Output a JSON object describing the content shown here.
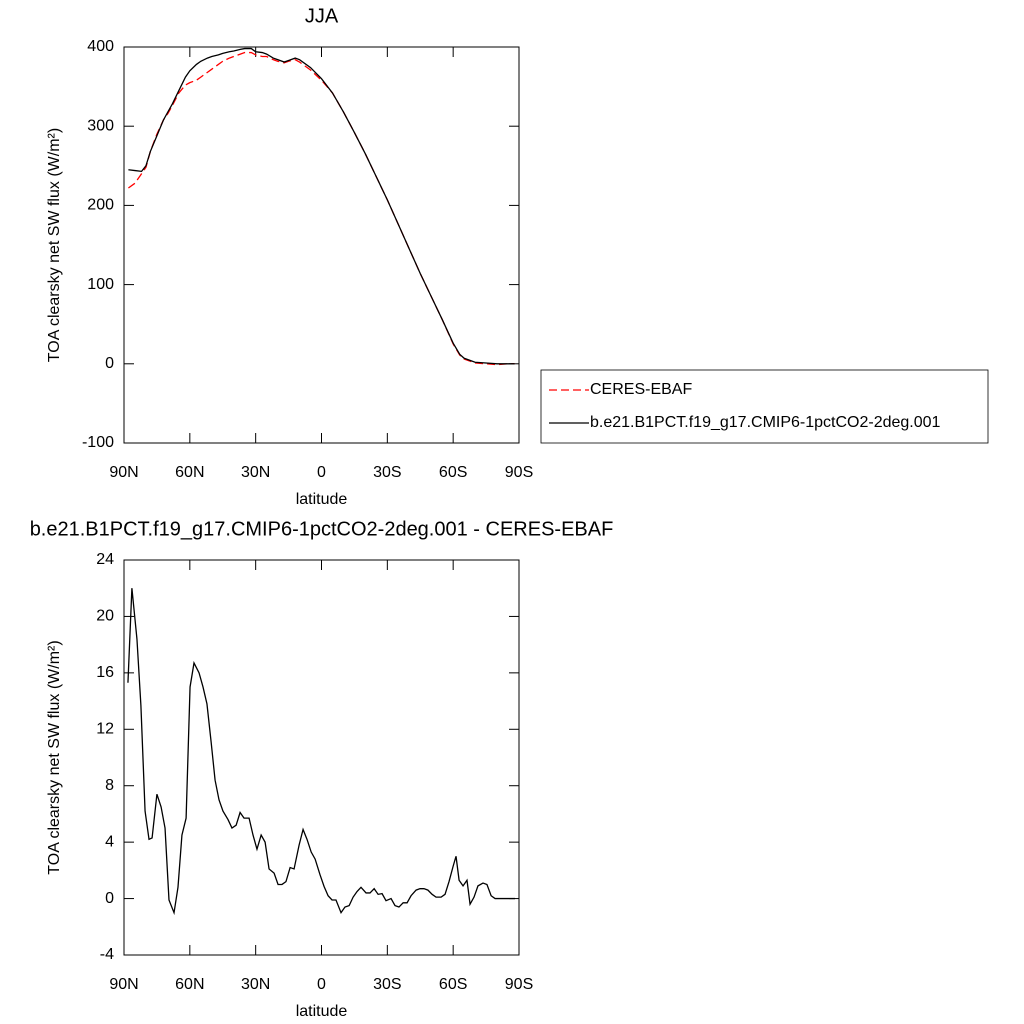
{
  "chart_data": [
    {
      "type": "line",
      "title": "JJA",
      "x_label": "latitude",
      "y_label": "TOA clearsky net SW flux (W/m²)",
      "xlim": [
        90,
        -90
      ],
      "xticks": [
        {
          "value": 90,
          "label": "90N"
        },
        {
          "value": 60,
          "label": "60N"
        },
        {
          "value": 30,
          "label": "30N"
        },
        0,
        {
          "value": -30,
          "label": "30S"
        },
        {
          "value": -60,
          "label": "60S"
        },
        {
          "value": -90,
          "label": "90S"
        }
      ],
      "ylim": [
        -100,
        400
      ],
      "yticks": [
        -100,
        0,
        100,
        200,
        300,
        400
      ],
      "legend": "right",
      "x": [
        88,
        85,
        82,
        80,
        78,
        75,
        72,
        70,
        68,
        65,
        62,
        60,
        57,
        55,
        52,
        50,
        47,
        45,
        42,
        40,
        37,
        35,
        32,
        30,
        27,
        25,
        22,
        20,
        17,
        15,
        12,
        10,
        5,
        0,
        -5,
        -10,
        -15,
        -20,
        -25,
        -30,
        -35,
        -40,
        -45,
        -50,
        -55,
        -60,
        -63,
        -65,
        -68,
        -70,
        -75,
        -80,
        -85,
        -88
      ],
      "series": [
        {
          "name": "CERES-EBAF",
          "color": "#ff0000",
          "line_style": "dashed",
          "values": [
            222,
            228,
            240,
            248,
            268,
            290,
            308,
            316,
            326,
            342,
            352,
            355,
            358,
            362,
            368,
            372,
            378,
            382,
            386,
            388,
            391,
            393,
            393,
            390,
            388,
            388,
            384,
            382,
            380,
            382,
            384,
            381,
            371,
            358,
            342,
            318,
            292,
            265,
            236,
            207,
            176,
            145,
            114,
            85,
            56,
            25,
            11,
            6,
            3,
            1,
            0,
            -1,
            0,
            0
          ]
        },
        {
          "name": "b.e21.B1PCT.f19_g17.CMIP6-1pctCO2-2deg.001",
          "color": "#000000",
          "line_style": "solid",
          "values": [
            245,
            244,
            243,
            250,
            268,
            288,
            308,
            318,
            328,
            345,
            362,
            370,
            378,
            382,
            386,
            388,
            390,
            392,
            394,
            395,
            397,
            398,
            398,
            394,
            393,
            391,
            386,
            384,
            381,
            383,
            386,
            384,
            374,
            360,
            342,
            318,
            292,
            265,
            236,
            207,
            176,
            145,
            114,
            85,
            56,
            26,
            12,
            7,
            4,
            2,
            1,
            0,
            0,
            0
          ]
        }
      ]
    },
    {
      "type": "line",
      "title": "b.e21.B1PCT.f19_g17.CMIP6-1pctCO2-2deg.001 - CERES-EBAF",
      "x_label": "latitude",
      "y_label": "TOA clearsky net SW flux (W/m²)",
      "xlim": [
        90,
        -90
      ],
      "xticks": [
        {
          "value": 90,
          "label": "90N"
        },
        {
          "value": 60,
          "label": "60N"
        },
        {
          "value": 30,
          "label": "30N"
        },
        0,
        {
          "value": -30,
          "label": "30S"
        },
        {
          "value": -60,
          "label": "60S"
        },
        {
          "value": -90,
          "label": "90S"
        }
      ],
      "ylim": [
        -4,
        24
      ],
      "yticks": [
        -4,
        0,
        4,
        8,
        12,
        16,
        20,
        24
      ],
      "color": "#000000",
      "x": [
        88.2,
        86.4,
        84.1,
        82.3,
        80.4,
        78.6,
        77.2,
        75.0,
        73.1,
        71.3,
        69.5,
        67.2,
        65.4,
        63.6,
        61.7,
        59.9,
        58.1,
        55.8,
        54.0,
        52.2,
        50.3,
        48.5,
        46.7,
        44.9,
        42.6,
        40.8,
        38.9,
        37.1,
        35.3,
        33.0,
        31.2,
        29.4,
        27.5,
        25.7,
        23.9,
        21.6,
        19.8,
        18.0,
        16.2,
        14.3,
        12.5,
        10.2,
        8.4,
        6.6,
        4.7,
        2.9,
        0.7,
        -1.2,
        -3.0,
        -4.8,
        -6.6,
        -8.9,
        -10.7,
        -12.6,
        -14.4,
        -16.2,
        -18.0,
        -20.3,
        -22.1,
        -24.0,
        -25.8,
        -27.6,
        -29.4,
        -31.7,
        -33.5,
        -35.3,
        -37.2,
        -39.0,
        -40.8,
        -43.1,
        -44.9,
        -46.7,
        -48.5,
        -50.4,
        -52.2,
        -54.5,
        -56.3,
        -58.1,
        -60.0,
        -61.3,
        -62.7,
        -64.5,
        -66.3,
        -67.7,
        -69.5,
        -71.3,
        -73.6,
        -75.4,
        -77.3,
        -79.1,
        -80.9,
        -82.7,
        -84.6,
        -86.4,
        -88.2
      ],
      "values": [
        15.3,
        22.0,
        18.4,
        13.7,
        6.2,
        4.2,
        4.3,
        7.4,
        6.5,
        5.0,
        -0.1,
        -1.0,
        0.8,
        4.5,
        5.7,
        15.0,
        16.7,
        16.0,
        15.0,
        13.8,
        11.1,
        8.4,
        7.0,
        6.2,
        5.6,
        5.0,
        5.2,
        6.1,
        5.7,
        5.7,
        4.5,
        3.5,
        4.5,
        4.0,
        2.1,
        1.8,
        1.0,
        1.0,
        1.2,
        2.2,
        2.1,
        3.8,
        4.9,
        4.2,
        3.3,
        2.8,
        1.7,
        0.85,
        0.2,
        -0.1,
        -0.1,
        -1.0,
        -0.6,
        -0.5,
        0.1,
        0.5,
        0.8,
        0.4,
        0.4,
        0.7,
        0.3,
        0.35,
        -0.15,
        0.0,
        -0.5,
        -0.6,
        -0.3,
        -0.3,
        0.2,
        0.6,
        0.7,
        0.7,
        0.6,
        0.3,
        0.1,
        0.1,
        0.3,
        1.2,
        2.3,
        3.0,
        1.3,
        0.9,
        1.3,
        -0.4,
        0.1,
        0.9,
        1.1,
        1.0,
        0.2,
        0.0,
        0.0,
        0.0,
        0.0,
        0.0,
        0.0
      ]
    }
  ]
}
